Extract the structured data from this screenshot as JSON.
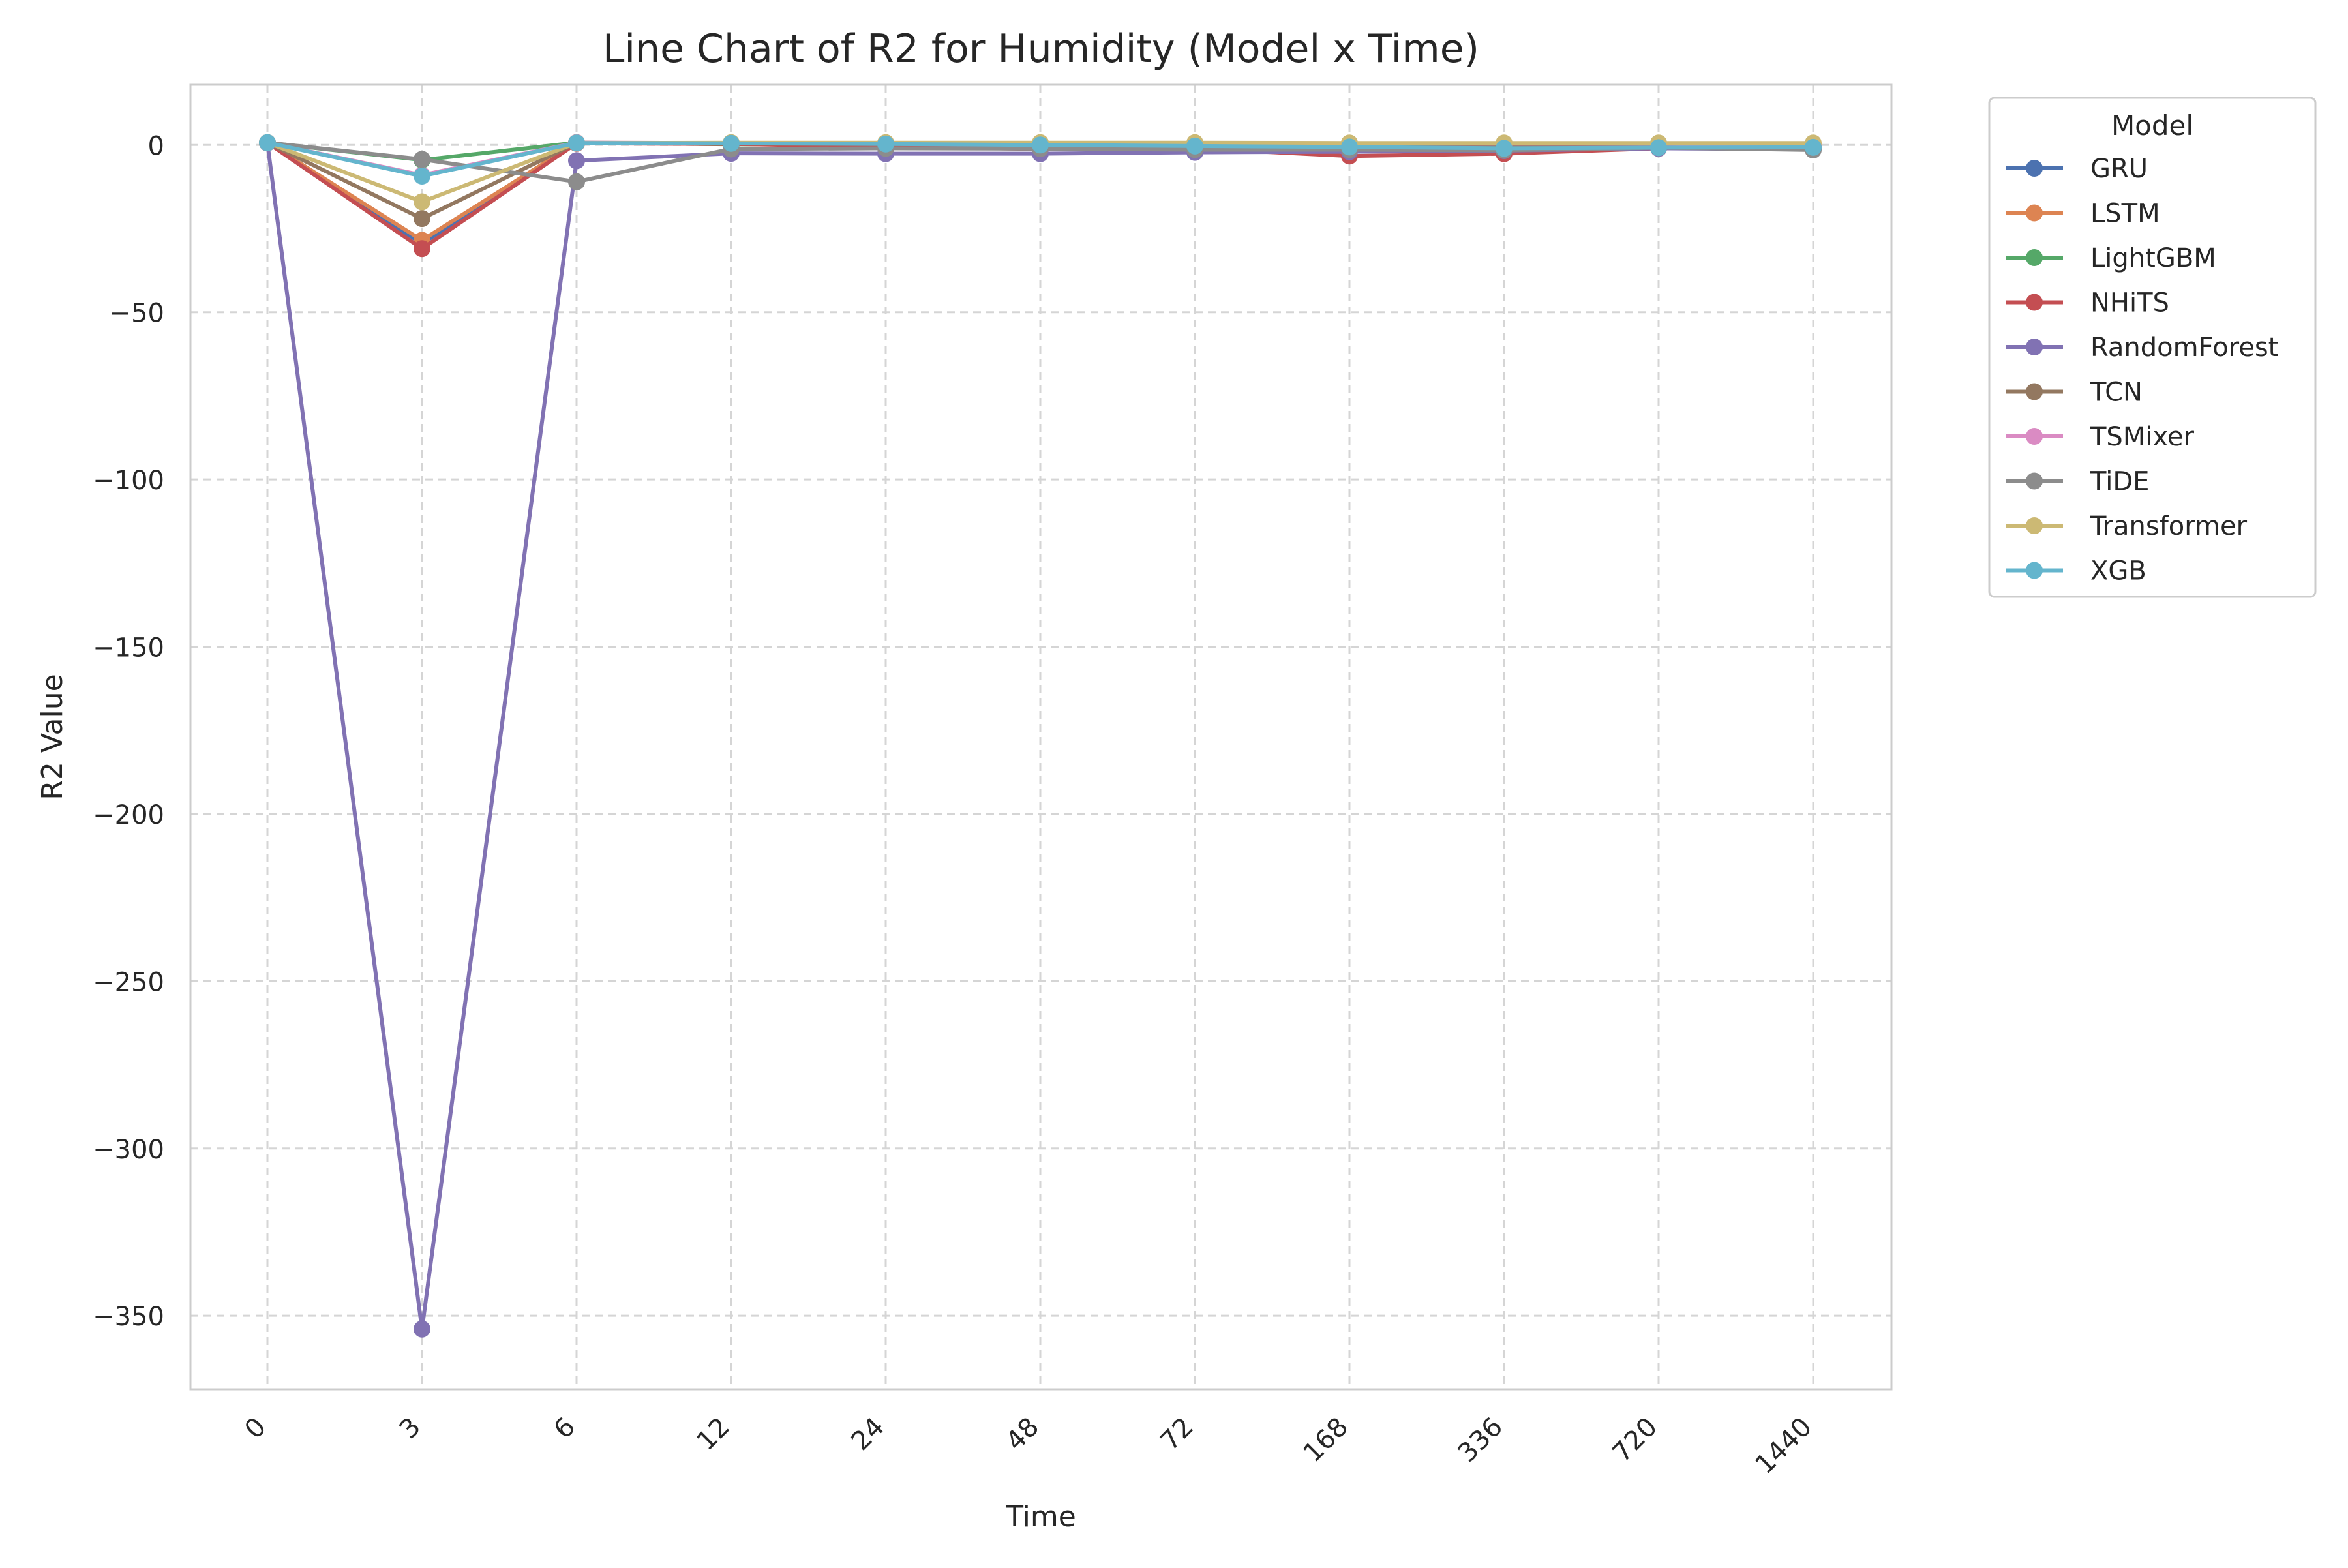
{
  "chart_data": {
    "type": "line",
    "title": "Line Chart of R2 for Humidity (Model x Time)",
    "xlabel": "Time",
    "ylabel": "R2 Value",
    "categories": [
      "0",
      "3",
      "6",
      "12",
      "24",
      "48",
      "72",
      "168",
      "336",
      "720",
      "1440"
    ],
    "ylim": [
      -372,
      18
    ],
    "yticks": [
      0,
      -50,
      -100,
      -150,
      -200,
      -250,
      -300,
      -350
    ],
    "ytick_labels": [
      "0",
      "−50",
      "−100",
      "−150",
      "−200",
      "−250",
      "−300",
      "−350"
    ],
    "grid": true,
    "legend": {
      "title": "Model",
      "placement": "outside-upper-right"
    },
    "series": [
      {
        "name": "GRU",
        "color": "#4c72b0",
        "values": [
          0.7,
          -29.5,
          0.7,
          0.5,
          0.5,
          0.4,
          0.3,
          0.1,
          -0.1,
          -0.6,
          -0.9
        ]
      },
      {
        "name": "LSTM",
        "color": "#dd8452",
        "values": [
          0.7,
          -28.5,
          0.7,
          0.6,
          0.6,
          0.5,
          0.5,
          0.3,
          0.1,
          -0.3,
          0.0
        ]
      },
      {
        "name": "LightGBM",
        "color": "#55a868",
        "values": [
          0.7,
          -4.5,
          0.7,
          0.2,
          0.1,
          -0.2,
          -0.4,
          -0.9,
          -1.2,
          -0.9,
          -1.2
        ]
      },
      {
        "name": "NHiTS",
        "color": "#c44e52",
        "values": [
          0.7,
          -31.0,
          0.5,
          0.3,
          -0.5,
          -1.2,
          -1.0,
          -3.3,
          -2.6,
          -1.0,
          -1.0
        ]
      },
      {
        "name": "RandomForest",
        "color": "#8172b3",
        "values": [
          0.6,
          -354.0,
          -4.7,
          -2.5,
          -2.6,
          -2.6,
          -2.2,
          -2.0,
          -1.7,
          -1.0,
          -1.3
        ]
      },
      {
        "name": "TCN",
        "color": "#937860",
        "values": [
          0.7,
          -22.0,
          0.6,
          0.4,
          0.3,
          0.2,
          0.2,
          -0.2,
          -0.4,
          -0.6,
          -0.8
        ]
      },
      {
        "name": "TSMixer",
        "color": "#da8bc3",
        "values": [
          0.7,
          -9.0,
          0.7,
          0.6,
          0.6,
          0.6,
          0.6,
          0.5,
          0.4,
          0.4,
          0.1
        ]
      },
      {
        "name": "TiDE",
        "color": "#8c8c8c",
        "values": [
          0.7,
          -4.3,
          -11.0,
          -1.2,
          -1.0,
          -1.1,
          -1.4,
          -1.4,
          -1.6,
          -0.8,
          -1.5
        ]
      },
      {
        "name": "Transformer",
        "color": "#ccb974",
        "values": [
          0.7,
          -17.0,
          0.6,
          0.7,
          0.7,
          0.7,
          0.7,
          0.6,
          0.6,
          0.6,
          0.6
        ]
      },
      {
        "name": "XGB",
        "color": "#64b5cd",
        "values": [
          0.7,
          -9.3,
          0.6,
          0.5,
          0.3,
          0.0,
          -0.3,
          -0.6,
          -1.0,
          -0.8,
          -0.7
        ]
      }
    ]
  }
}
